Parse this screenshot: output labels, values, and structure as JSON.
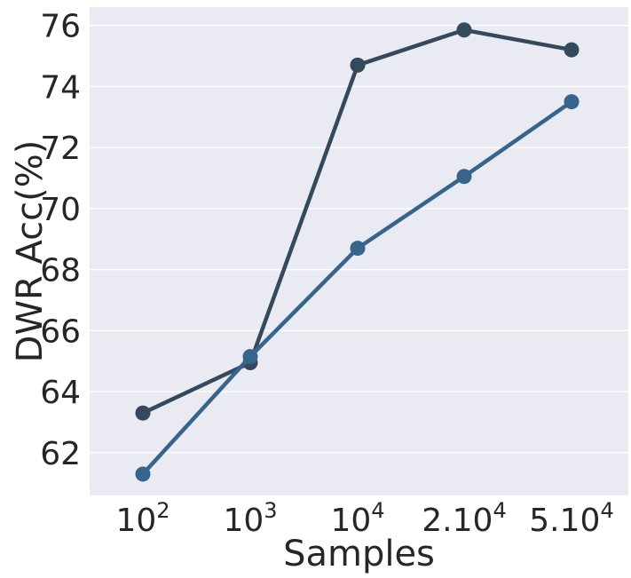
{
  "chart_data": {
    "type": "line",
    "xlabel": "Samples",
    "ylabel": "DWR Acc(%)",
    "categories": [
      {
        "base": "10",
        "exp": "2"
      },
      {
        "base": "10",
        "exp": "3"
      },
      {
        "base": "10",
        "exp": "4"
      },
      {
        "base": "2.10",
        "exp": "4"
      },
      {
        "base": "5.10",
        "exp": "4"
      }
    ],
    "ylim": [
      60.6,
      76.6
    ],
    "yticks": [
      62,
      64,
      66,
      68,
      70,
      72,
      74,
      76
    ],
    "grid": true,
    "legend": "none",
    "colors": {
      "background": "#eaeaf2",
      "grid": "#ffffff",
      "text": "#262626"
    },
    "series": [
      {
        "color": "#344a5c",
        "values": [
          63.3,
          64.95,
          74.7,
          75.85,
          75.2
        ]
      },
      {
        "color": "#36648b",
        "values": [
          61.3,
          65.15,
          68.7,
          71.05,
          73.5
        ]
      }
    ]
  }
}
